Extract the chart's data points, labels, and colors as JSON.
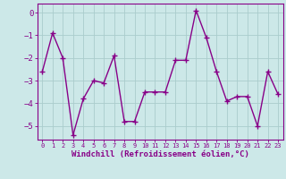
{
  "x": [
    0,
    1,
    2,
    3,
    4,
    5,
    6,
    7,
    8,
    9,
    10,
    11,
    12,
    13,
    14,
    15,
    16,
    17,
    18,
    19,
    20,
    21,
    22,
    23
  ],
  "y": [
    -2.6,
    -0.9,
    -2.0,
    -5.4,
    -3.8,
    -3.0,
    -3.1,
    -1.9,
    -4.8,
    -4.8,
    -3.5,
    -3.5,
    -3.5,
    -2.1,
    -2.1,
    0.1,
    -1.1,
    -2.6,
    -3.9,
    -3.7,
    -3.7,
    -5.0,
    -2.6,
    -3.6
  ],
  "line_color": "#990099",
  "marker": "P",
  "markersize": 3,
  "bg_color": "#cce8e8",
  "grid_color": "#aacccc",
  "xlabel": "Windchill (Refroidissement éolien,°C)",
  "ylim": [
    -5.6,
    0.4
  ],
  "xlim": [
    -0.5,
    23.5
  ],
  "yticks": [
    0,
    -1,
    -2,
    -3,
    -4,
    -5
  ],
  "xtick_labels": [
    "0",
    "1",
    "2",
    "3",
    "4",
    "5",
    "6",
    "7",
    "8",
    "9",
    "10",
    "11",
    "12",
    "13",
    "14",
    "15",
    "16",
    "17",
    "18",
    "19",
    "20",
    "21",
    "22",
    "23"
  ],
  "line_color_hex": "#880088",
  "spine_color": "#880088",
  "tick_color": "#880088",
  "label_color": "#880088",
  "linewidth": 1.0
}
